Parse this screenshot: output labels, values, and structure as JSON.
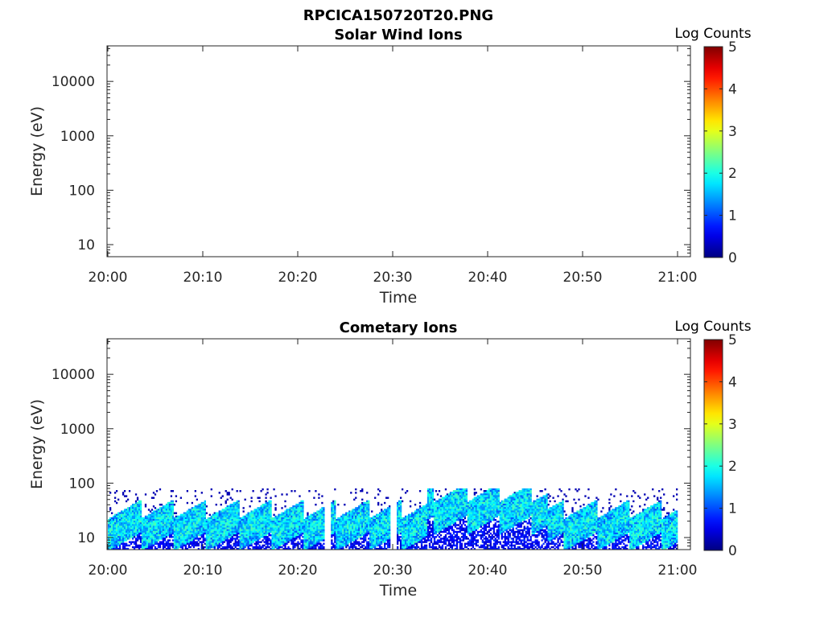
{
  "figure_title": "RPCICA150720T20.PNG",
  "chart_data": [
    {
      "type": "heatmap",
      "title": "Solar Wind Ions",
      "xlabel": "Time",
      "ylabel": "Energy (eV)",
      "x_ticks": [
        "20:00",
        "20:10",
        "20:20",
        "20:30",
        "20:40",
        "20:50",
        "21:00"
      ],
      "y_ticks": [
        "10",
        "100",
        "1000",
        "10000"
      ],
      "y_scale": "log",
      "ylim": [
        6,
        45000
      ],
      "colorbar": {
        "label": "Log Counts",
        "range": [
          0,
          5
        ],
        "ticks": [
          "0",
          "1",
          "2",
          "3",
          "4",
          "5"
        ],
        "colormap": "jet"
      },
      "data_present": false
    },
    {
      "type": "heatmap",
      "title": "Cometary Ions",
      "xlabel": "Time",
      "ylabel": "Energy (eV)",
      "x_ticks": [
        "20:00",
        "20:10",
        "20:20",
        "20:30",
        "20:40",
        "20:50",
        "21:00"
      ],
      "y_ticks": [
        "10",
        "100",
        "1000",
        "10000"
      ],
      "y_scale": "log",
      "ylim": [
        6,
        45000
      ],
      "colorbar": {
        "label": "Log Counts",
        "range": [
          0,
          5
        ],
        "ticks": [
          "0",
          "1",
          "2",
          "3",
          "4",
          "5"
        ],
        "colormap": "jet"
      },
      "data_present": true,
      "energy_band_eV": [
        6,
        80
      ],
      "peak_log_counts": 2.3
    }
  ]
}
